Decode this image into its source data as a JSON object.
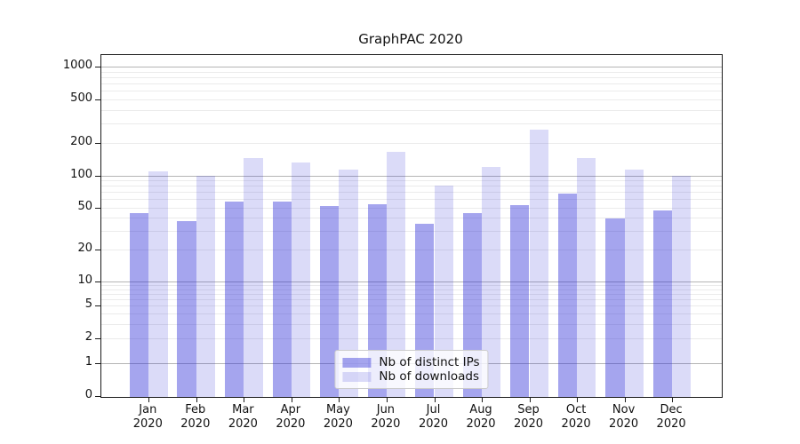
{
  "chart_data": {
    "type": "bar",
    "title": "GraphPAC 2020",
    "categories": [
      "Jan",
      "Feb",
      "Mar",
      "Apr",
      "May",
      "Jun",
      "Jul",
      "Aug",
      "Sep",
      "Oct",
      "Nov",
      "Dec"
    ],
    "category_year": "2020",
    "series": [
      {
        "name": "Nb of distinct IPs",
        "fill": "rgba(40,40,214,0.42)",
        "solid_hex": "#a4a4ee",
        "values": [
          44,
          37,
          57,
          57,
          52,
          54,
          35,
          44,
          53,
          67,
          39,
          47
        ]
      },
      {
        "name": "Nb of downloads",
        "fill": "rgba(40,40,214,0.17)",
        "solid_hex": "#dadaf8",
        "values": [
          110,
          100,
          145,
          132,
          113,
          164,
          80,
          119,
          265,
          145,
          113,
          100
        ]
      }
    ],
    "y_axis": {
      "scale": "symlog",
      "tick_labels": [
        "0",
        "1",
        "2",
        "5",
        "10",
        "20",
        "50",
        "100",
        "200",
        "500",
        "1000"
      ],
      "tick_values": [
        0,
        1,
        2,
        5,
        10,
        20,
        50,
        100,
        200,
        500,
        1000
      ],
      "range": [
        0,
        1000
      ],
      "major_grid_values": [
        1,
        10,
        100,
        1000
      ]
    },
    "grid": "on",
    "legend_position": "lower center"
  },
  "colors": {
    "background": "#ffffff",
    "grid_major": "#b5b5b5",
    "grid_minor": "#ebebeb",
    "spine": "#1a1a1a",
    "text": "#111111",
    "legend_border": "#cccccc"
  }
}
